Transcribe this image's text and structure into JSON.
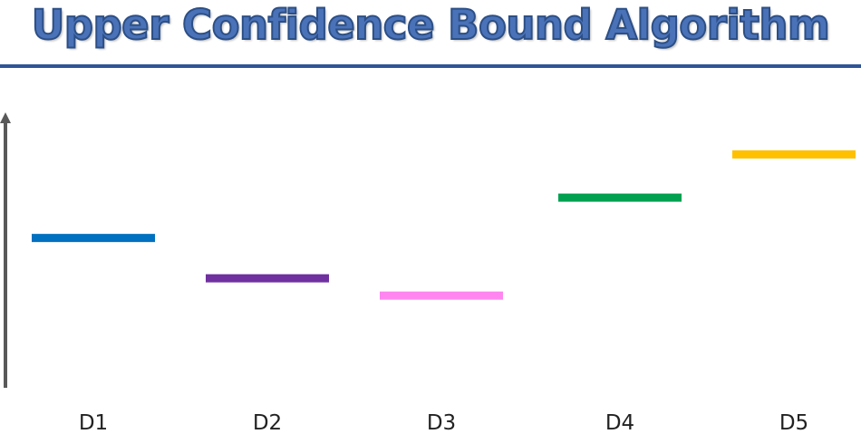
{
  "header": {
    "title": "Upper Confidence Bound Algorithm"
  },
  "colors": {
    "title": "#4a72b8",
    "rule": "#2f5597",
    "axis": "#595959"
  },
  "chart_data": {
    "type": "bar",
    "categories": [
      "D1",
      "D2",
      "D3",
      "D4",
      "D5"
    ],
    "values": [
      0.52,
      0.38,
      0.32,
      0.66,
      0.81
    ],
    "colors": [
      "#0070c0",
      "#7030a0",
      "#ff85f0",
      "#00a050",
      "#ffc000"
    ],
    "ylim": [
      0,
      1
    ],
    "grid": false
  }
}
